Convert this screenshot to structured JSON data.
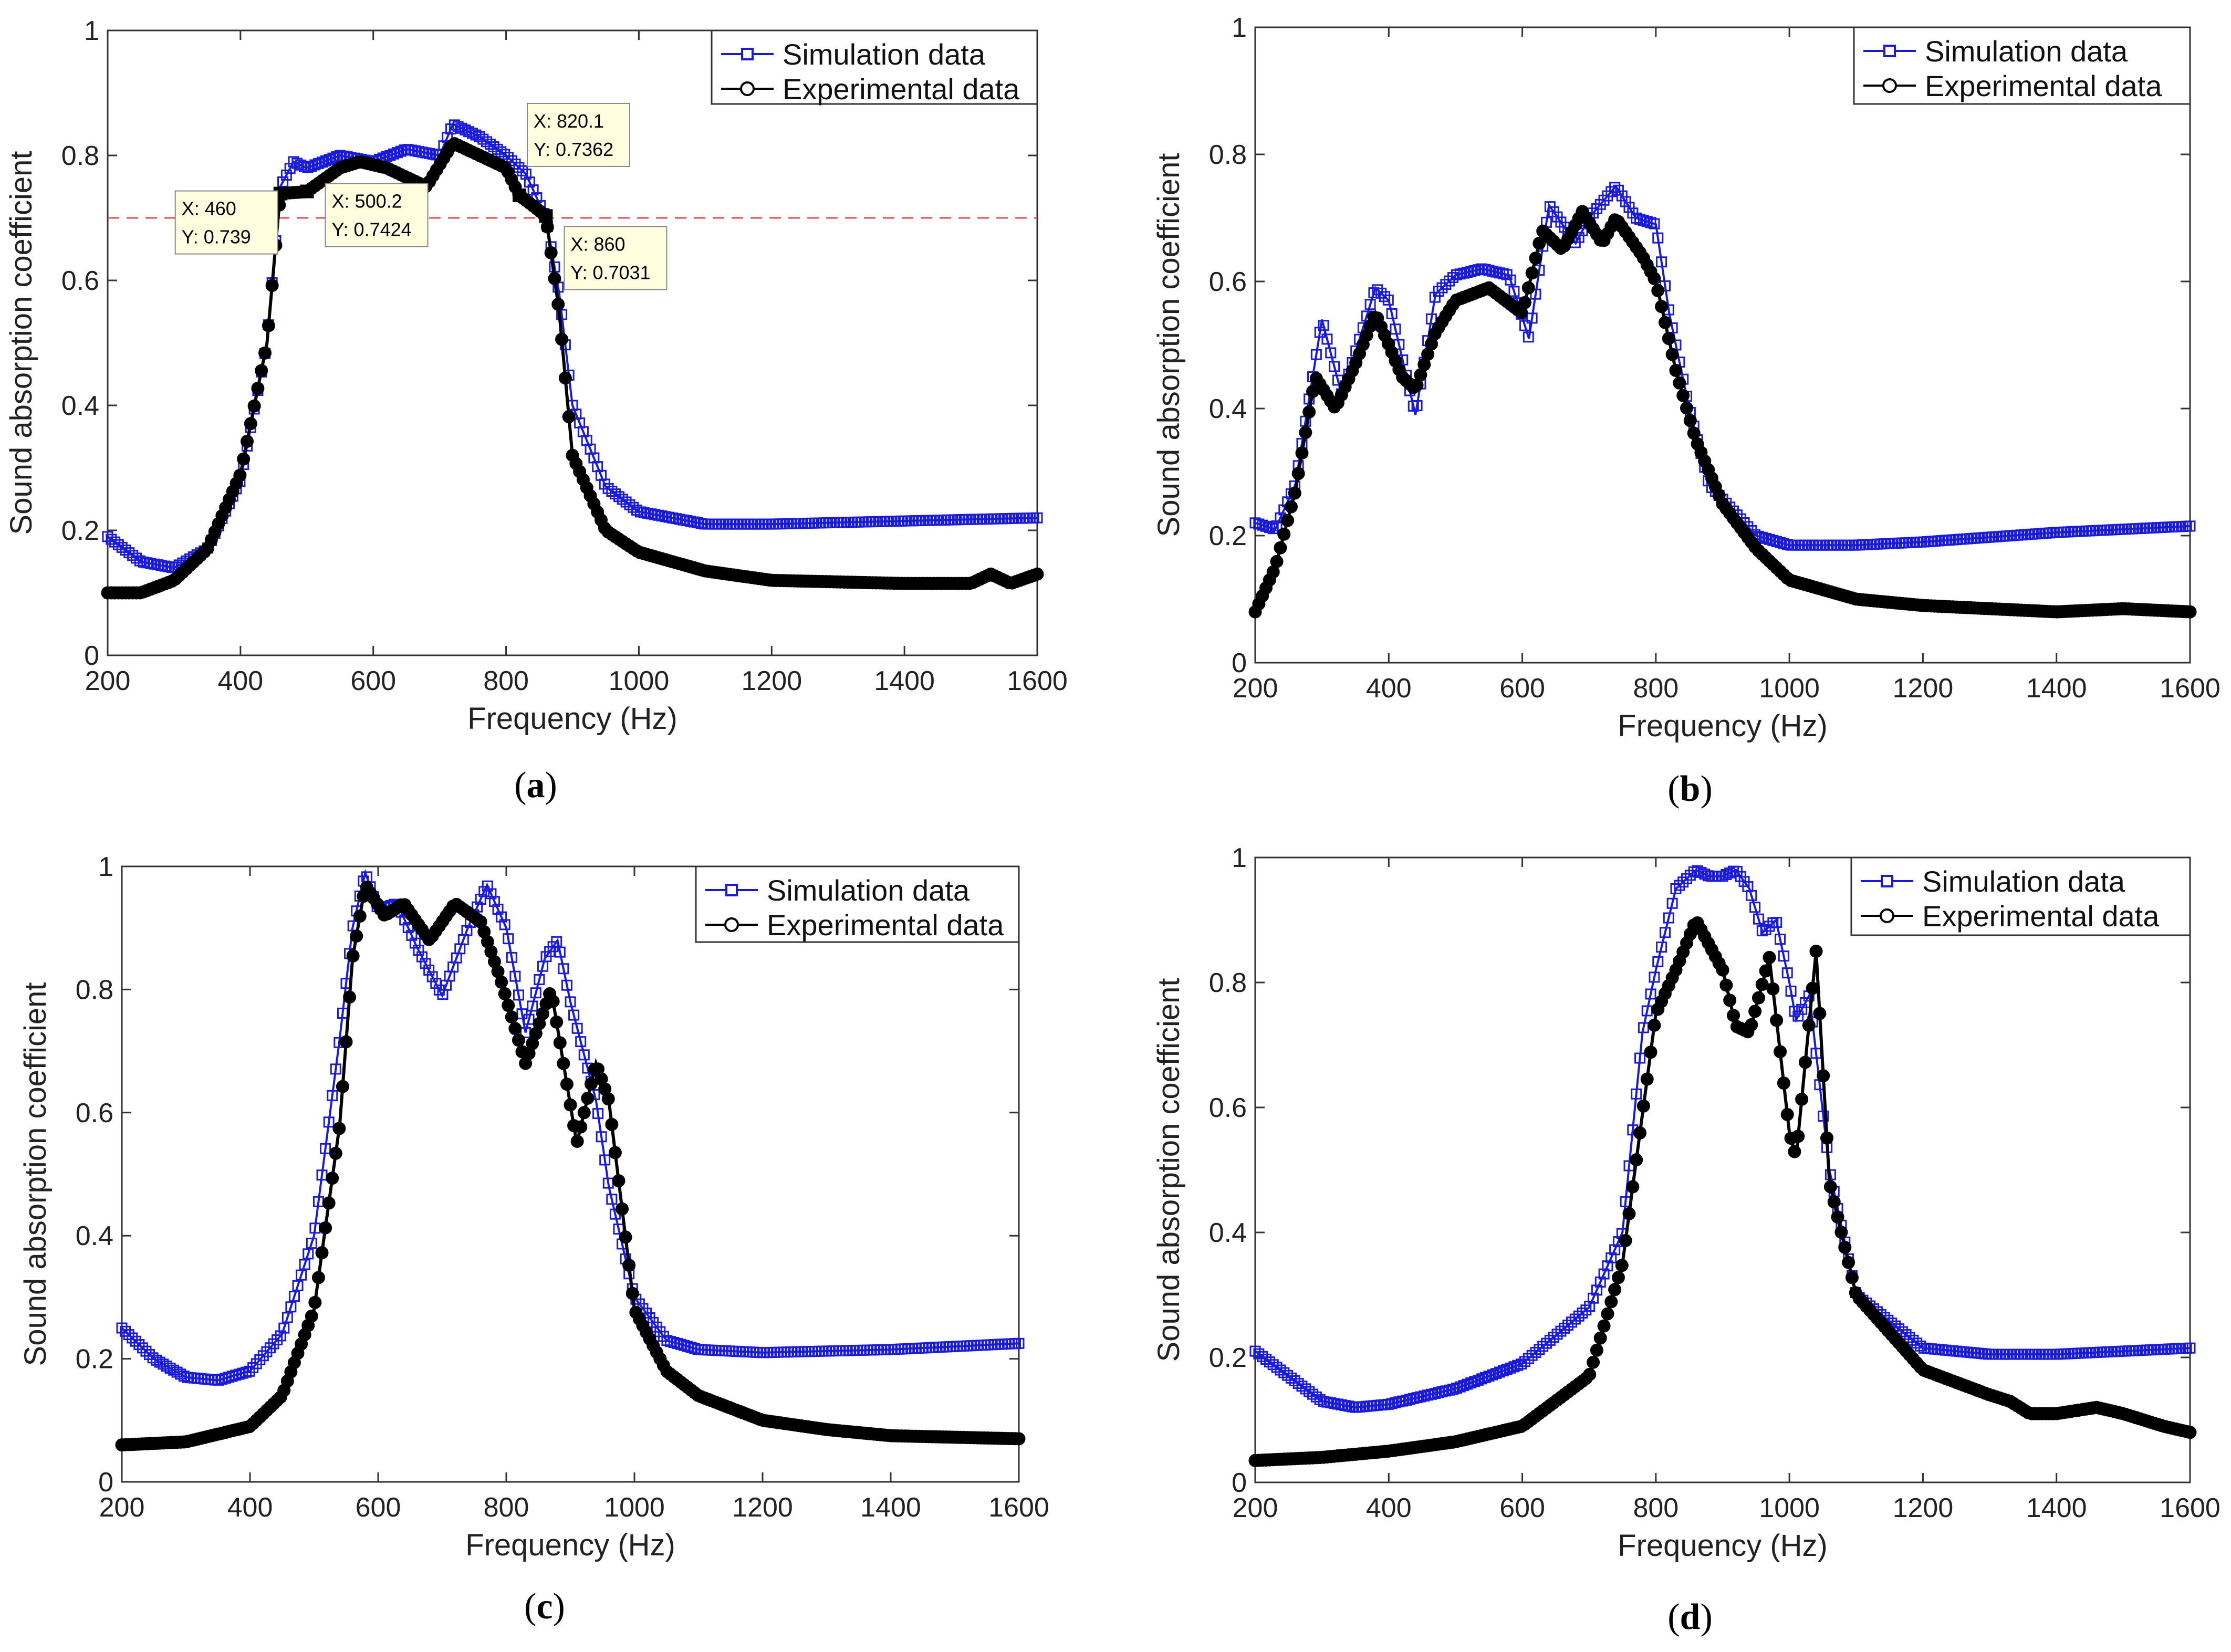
{
  "figure": {
    "panels": [
      "(a)",
      "(b)",
      "(c)",
      "(d)"
    ]
  },
  "chart_data": [
    {
      "type": "line",
      "panel": "(a)",
      "xlabel": "Frequency (Hz)",
      "ylabel": "Sound absorption coefficient",
      "xlim": [
        200,
        1600
      ],
      "ylim": [
        0,
        1
      ],
      "xticks": [
        "200",
        "400",
        "600",
        "800",
        "1000",
        "1200",
        "1400",
        "1600"
      ],
      "yticks": [
        "0",
        "0.2",
        "0.4",
        "0.6",
        "0.8",
        "1"
      ],
      "grid": false,
      "legend_position": "top-right",
      "threshold_line": 0.7,
      "series": [
        {
          "name": "Simulation data",
          "marker": "square",
          "color": "#1a1adb",
          "x": [
            200,
            250,
            300,
            350,
            400,
            440,
            460,
            480,
            500,
            550,
            600,
            650,
            700,
            720,
            760,
            800,
            830,
            860,
            880,
            900,
            950,
            1000,
            1100,
            1200,
            1400,
            1600
          ],
          "y": [
            0.19,
            0.15,
            0.14,
            0.17,
            0.28,
            0.5,
            0.75,
            0.79,
            0.78,
            0.8,
            0.79,
            0.81,
            0.8,
            0.85,
            0.83,
            0.8,
            0.77,
            0.7,
            0.58,
            0.4,
            0.27,
            0.23,
            0.21,
            0.21,
            0.215,
            0.22
          ]
        },
        {
          "name": "Experimental data",
          "marker": "circle",
          "color": "#000000",
          "x": [
            200,
            250,
            300,
            350,
            400,
            440,
            460,
            500,
            550,
            580,
            620,
            680,
            720,
            760,
            800,
            820,
            840,
            860,
            880,
            900,
            950,
            1000,
            1100,
            1200,
            1400,
            1500,
            1530,
            1560,
            1600
          ],
          "y": [
            0.1,
            0.1,
            0.12,
            0.17,
            0.29,
            0.5,
            0.739,
            0.742,
            0.78,
            0.79,
            0.78,
            0.75,
            0.82,
            0.8,
            0.78,
            0.736,
            0.72,
            0.7031,
            0.55,
            0.32,
            0.2,
            0.165,
            0.135,
            0.12,
            0.115,
            0.115,
            0.13,
            0.115,
            0.13
          ]
        }
      ],
      "datatips": [
        {
          "x_label": "X: 460",
          "y_label": "Y: 0.739"
        },
        {
          "x_label": "X: 500.2",
          "y_label": "Y: 0.7424"
        },
        {
          "x_label": "X: 820.1",
          "y_label": "Y: 0.7362"
        },
        {
          "x_label": "X: 860",
          "y_label": "Y: 0.7031"
        }
      ],
      "datatip_points": [
        [
          460,
          0.739
        ],
        [
          500.2,
          0.7424
        ],
        [
          820.1,
          0.7362
        ],
        [
          860,
          0.7031
        ]
      ]
    },
    {
      "type": "line",
      "panel": "(b)",
      "xlabel": "Frequency (Hz)",
      "ylabel": "Sound absorption coefficient",
      "xlim": [
        200,
        1600
      ],
      "ylim": [
        0,
        1
      ],
      "xticks": [
        "200",
        "400",
        "600",
        "800",
        "1000",
        "1200",
        "1400",
        "1600"
      ],
      "yticks": [
        "0",
        "0.2",
        "0.4",
        "0.6",
        "0.8",
        "1"
      ],
      "grid": false,
      "legend_position": "top-right",
      "series": [
        {
          "name": "Simulation data",
          "marker": "square",
          "color": "#1a1adb",
          "x": [
            200,
            230,
            260,
            300,
            330,
            380,
            400,
            440,
            470,
            500,
            540,
            580,
            610,
            640,
            680,
            700,
            740,
            770,
            800,
            820,
            850,
            880,
            950,
            1000,
            1100,
            1200,
            1400,
            1600
          ],
          "y": [
            0.22,
            0.21,
            0.28,
            0.54,
            0.42,
            0.59,
            0.57,
            0.39,
            0.58,
            0.61,
            0.62,
            0.61,
            0.51,
            0.72,
            0.66,
            0.7,
            0.75,
            0.7,
            0.69,
            0.55,
            0.4,
            0.28,
            0.2,
            0.185,
            0.185,
            0.19,
            0.205,
            0.215
          ]
        },
        {
          "name": "Experimental data",
          "marker": "circle",
          "color": "#000000",
          "x": [
            200,
            230,
            260,
            290,
            320,
            350,
            380,
            420,
            440,
            470,
            500,
            550,
            600,
            630,
            660,
            690,
            720,
            740,
            780,
            800,
            830,
            860,
            900,
            950,
            1000,
            1100,
            1200,
            1300,
            1400,
            1500,
            1600
          ],
          "y": [
            0.08,
            0.15,
            0.27,
            0.45,
            0.4,
            0.47,
            0.55,
            0.45,
            0.43,
            0.52,
            0.57,
            0.59,
            0.55,
            0.68,
            0.65,
            0.71,
            0.66,
            0.7,
            0.64,
            0.6,
            0.46,
            0.35,
            0.25,
            0.18,
            0.13,
            0.1,
            0.09,
            0.085,
            0.08,
            0.085,
            0.08
          ]
        }
      ]
    },
    {
      "type": "line",
      "panel": "(c)",
      "xlabel": "Frequency (Hz)",
      "ylabel": "Sound absorption coefficient",
      "xlim": [
        200,
        1600
      ],
      "ylim": [
        0,
        1
      ],
      "xticks": [
        "200",
        "400",
        "600",
        "800",
        "1000",
        "1200",
        "1400",
        "1600"
      ],
      "yticks": [
        "0",
        "0.2",
        "0.4",
        "0.6",
        "0.8",
        "1"
      ],
      "grid": false,
      "legend_position": "top-right",
      "series": [
        {
          "name": "Simulation data",
          "marker": "square",
          "color": "#1a1adb",
          "x": [
            200,
            250,
            300,
            350,
            400,
            450,
            500,
            540,
            560,
            580,
            600,
            630,
            660,
            700,
            740,
            770,
            800,
            830,
            860,
            880,
            900,
            940,
            960,
            1000,
            1050,
            1100,
            1200,
            1400,
            1600
          ],
          "y": [
            0.25,
            0.2,
            0.17,
            0.165,
            0.18,
            0.24,
            0.4,
            0.72,
            0.9,
            0.99,
            0.93,
            0.94,
            0.87,
            0.79,
            0.9,
            0.97,
            0.9,
            0.73,
            0.85,
            0.88,
            0.78,
            0.62,
            0.48,
            0.3,
            0.23,
            0.215,
            0.21,
            0.215,
            0.225
          ]
        },
        {
          "name": "Experimental data",
          "marker": "circle",
          "color": "#000000",
          "x": [
            200,
            300,
            400,
            450,
            500,
            540,
            560,
            580,
            610,
            640,
            680,
            720,
            760,
            790,
            830,
            870,
            910,
            940,
            960,
            1000,
            1050,
            1100,
            1200,
            1300,
            1400,
            1600
          ],
          "y": [
            0.06,
            0.065,
            0.09,
            0.14,
            0.28,
            0.58,
            0.85,
            0.97,
            0.92,
            0.94,
            0.88,
            0.94,
            0.91,
            0.82,
            0.68,
            0.8,
            0.55,
            0.68,
            0.62,
            0.28,
            0.18,
            0.14,
            0.1,
            0.085,
            0.075,
            0.07
          ]
        }
      ]
    },
    {
      "type": "line",
      "panel": "(d)",
      "xlabel": "Frequency (Hz)",
      "ylabel": "Sound absorption coefficient",
      "xlim": [
        200,
        1600
      ],
      "ylim": [
        0,
        1
      ],
      "xticks": [
        "200",
        "400",
        "600",
        "800",
        "1000",
        "1200",
        "1400",
        "1600"
      ],
      "yticks": [
        "0",
        "0.2",
        "0.4",
        "0.6",
        "0.8",
        "1"
      ],
      "grid": false,
      "legend_position": "top-right",
      "series": [
        {
          "name": "Simulation data",
          "marker": "square",
          "color": "#1a1adb",
          "x": [
            200,
            300,
            350,
            400,
            500,
            600,
            700,
            750,
            780,
            800,
            830,
            860,
            880,
            900,
            920,
            940,
            960,
            980,
            1000,
            1010,
            1030,
            1060,
            1100,
            1200,
            1300,
            1400,
            1600
          ],
          "y": [
            0.21,
            0.13,
            0.12,
            0.125,
            0.15,
            0.19,
            0.28,
            0.4,
            0.72,
            0.82,
            0.95,
            0.98,
            0.97,
            0.97,
            0.98,
            0.95,
            0.88,
            0.9,
            0.8,
            0.74,
            0.78,
            0.5,
            0.3,
            0.215,
            0.205,
            0.205,
            0.215
          ]
        },
        {
          "name": "Experimental data",
          "marker": "circle",
          "color": "#000000",
          "x": [
            200,
            300,
            400,
            500,
            560,
            600,
            700,
            750,
            800,
            830,
            860,
            900,
            920,
            940,
            970,
            1000,
            1010,
            1040,
            1060,
            1100,
            1200,
            1300,
            1330,
            1360,
            1400,
            1460,
            1500,
            1560,
            1600
          ],
          "y": [
            0.035,
            0.04,
            0.05,
            0.065,
            0.08,
            0.09,
            0.17,
            0.35,
            0.75,
            0.82,
            0.9,
            0.82,
            0.73,
            0.72,
            0.84,
            0.56,
            0.52,
            0.85,
            0.48,
            0.3,
            0.18,
            0.14,
            0.13,
            0.11,
            0.11,
            0.12,
            0.11,
            0.09,
            0.08
          ]
        }
      ]
    }
  ]
}
